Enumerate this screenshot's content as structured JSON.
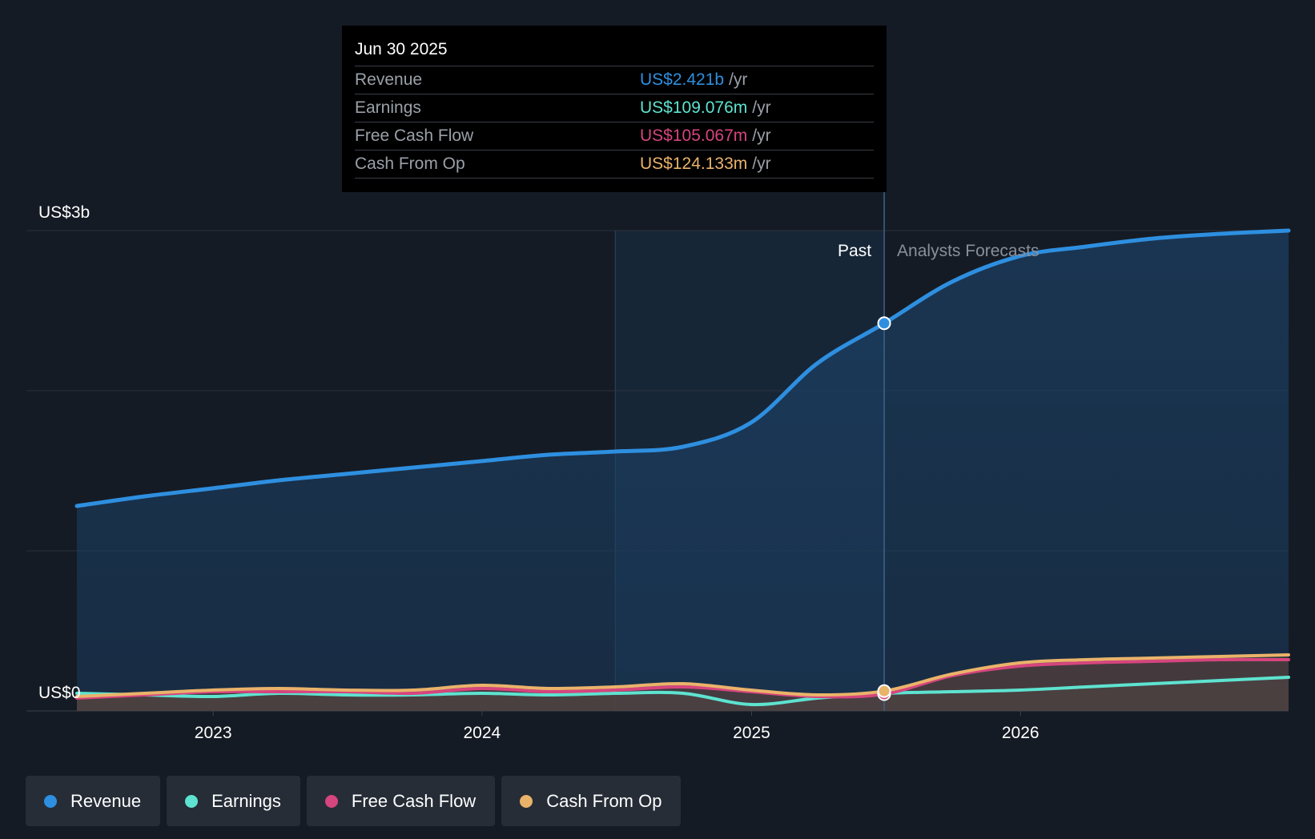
{
  "tooltip": {
    "date": "Jun 30 2025",
    "rows": [
      {
        "label": "Revenue",
        "value": "US$2.421b",
        "unit": "/yr",
        "color": "#2e8fe0"
      },
      {
        "label": "Earnings",
        "value": "US$109.076m",
        "unit": "/yr",
        "color": "#5ee3d0"
      },
      {
        "label": "Free Cash Flow",
        "value": "US$105.067m",
        "unit": "/yr",
        "color": "#d6457e"
      },
      {
        "label": "Cash From Op",
        "value": "US$124.133m",
        "unit": "/yr",
        "color": "#eab36a"
      }
    ]
  },
  "legend": [
    {
      "label": "Revenue",
      "color": "#2e8fe0"
    },
    {
      "label": "Earnings",
      "color": "#5ee3d0"
    },
    {
      "label": "Free Cash Flow",
      "color": "#d6457e"
    },
    {
      "label": "Cash From Op",
      "color": "#eab36a"
    }
  ],
  "chart_data": {
    "type": "area",
    "x_ticks": [
      "2023",
      "2024",
      "2025",
      "2026"
    ],
    "y_ticks": [
      {
        "value": 3,
        "label": "US$3b"
      },
      {
        "value": 0,
        "label": "US$0"
      }
    ],
    "ylim": [
      0,
      3
    ],
    "y_unit": "US$ billions",
    "xlim": [
      "2022-06-30",
      "2026-12-31"
    ],
    "grid": true,
    "past_label": "Past",
    "forecast_label": "Analysts Forecasts",
    "past_region_start": "2024-06-30",
    "divider": "2025-06-30",
    "series": [
      {
        "name": "Revenue",
        "color": "#2e8fe0",
        "points": [
          [
            "2022-06-30",
            1.28
          ],
          [
            "2022-09-30",
            1.34
          ],
          [
            "2022-12-31",
            1.39
          ],
          [
            "2023-03-31",
            1.44
          ],
          [
            "2023-06-30",
            1.48
          ],
          [
            "2023-09-30",
            1.52
          ],
          [
            "2023-12-31",
            1.56
          ],
          [
            "2024-03-31",
            1.6
          ],
          [
            "2024-06-30",
            1.62
          ],
          [
            "2024-09-30",
            1.65
          ],
          [
            "2024-12-31",
            1.8
          ],
          [
            "2025-03-31",
            2.17
          ],
          [
            "2025-06-30",
            2.421
          ],
          [
            "2025-09-30",
            2.68
          ],
          [
            "2025-12-31",
            2.84
          ],
          [
            "2026-03-31",
            2.9
          ],
          [
            "2026-06-30",
            2.95
          ],
          [
            "2026-09-30",
            2.98
          ],
          [
            "2026-12-31",
            3.0
          ]
        ]
      },
      {
        "name": "Earnings",
        "color": "#5ee3d0",
        "points": [
          [
            "2022-06-30",
            0.11
          ],
          [
            "2022-09-30",
            0.1
          ],
          [
            "2022-12-31",
            0.09
          ],
          [
            "2023-03-31",
            0.11
          ],
          [
            "2023-06-30",
            0.1
          ],
          [
            "2023-09-30",
            0.1
          ],
          [
            "2023-12-31",
            0.11
          ],
          [
            "2024-03-31",
            0.1
          ],
          [
            "2024-06-30",
            0.11
          ],
          [
            "2024-09-30",
            0.11
          ],
          [
            "2024-12-31",
            0.04
          ],
          [
            "2025-03-31",
            0.08
          ],
          [
            "2025-06-30",
            0.109
          ],
          [
            "2025-09-30",
            0.12
          ],
          [
            "2025-12-31",
            0.13
          ],
          [
            "2026-03-31",
            0.15
          ],
          [
            "2026-06-30",
            0.17
          ],
          [
            "2026-09-30",
            0.19
          ],
          [
            "2026-12-31",
            0.21
          ]
        ]
      },
      {
        "name": "Free Cash Flow",
        "color": "#d6457e",
        "points": [
          [
            "2022-06-30",
            0.08
          ],
          [
            "2022-09-30",
            0.1
          ],
          [
            "2022-12-31",
            0.12
          ],
          [
            "2023-03-31",
            0.12
          ],
          [
            "2023-06-30",
            0.12
          ],
          [
            "2023-09-30",
            0.11
          ],
          [
            "2023-12-31",
            0.14
          ],
          [
            "2024-03-31",
            0.12
          ],
          [
            "2024-06-30",
            0.13
          ],
          [
            "2024-09-30",
            0.15
          ],
          [
            "2024-12-31",
            0.12
          ],
          [
            "2025-03-31",
            0.09
          ],
          [
            "2025-06-30",
            0.105
          ],
          [
            "2025-09-30",
            0.22
          ],
          [
            "2025-12-31",
            0.28
          ],
          [
            "2026-03-31",
            0.3
          ],
          [
            "2026-06-30",
            0.31
          ],
          [
            "2026-09-30",
            0.32
          ],
          [
            "2026-12-31",
            0.32
          ]
        ]
      },
      {
        "name": "Cash From Op",
        "color": "#eab36a",
        "points": [
          [
            "2022-06-30",
            0.09
          ],
          [
            "2022-09-30",
            0.11
          ],
          [
            "2022-12-31",
            0.13
          ],
          [
            "2023-03-31",
            0.14
          ],
          [
            "2023-06-30",
            0.13
          ],
          [
            "2023-09-30",
            0.13
          ],
          [
            "2023-12-31",
            0.16
          ],
          [
            "2024-03-31",
            0.14
          ],
          [
            "2024-06-30",
            0.15
          ],
          [
            "2024-09-30",
            0.17
          ],
          [
            "2024-12-31",
            0.13
          ],
          [
            "2025-03-31",
            0.1
          ],
          [
            "2025-06-30",
            0.124
          ],
          [
            "2025-09-30",
            0.23
          ],
          [
            "2025-12-31",
            0.3
          ],
          [
            "2026-03-31",
            0.32
          ],
          [
            "2026-06-30",
            0.33
          ],
          [
            "2026-09-30",
            0.34
          ],
          [
            "2026-12-31",
            0.35
          ]
        ]
      }
    ]
  }
}
